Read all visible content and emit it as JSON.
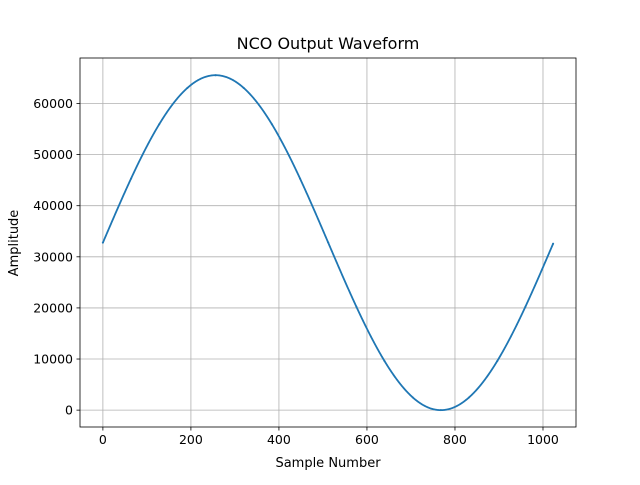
{
  "chart_data": {
    "type": "line",
    "title": "NCO Output Waveform",
    "xlabel": "Sample Number",
    "ylabel": "Amplitude",
    "xlim": [
      -52,
      1075
    ],
    "ylim": [
      -3300,
      68900
    ],
    "xticks": [
      0,
      200,
      400,
      600,
      800,
      1000
    ],
    "yticks": [
      0,
      10000,
      20000,
      30000,
      40000,
      50000,
      60000
    ],
    "grid": true,
    "series": [
      {
        "color": "#1f77b4",
        "samples": 1024,
        "offset": 32768,
        "amplitude": 32767,
        "cycles": 1,
        "x": [
          0,
          64,
          128,
          192,
          256,
          320,
          384,
          448,
          512,
          576,
          640,
          704,
          768,
          832,
          896,
          960,
          1023
        ],
        "y": [
          32768,
          45307,
          55938,
          63042,
          65535,
          63042,
          55938,
          45307,
          32768,
          20229,
          9598,
          2494,
          1,
          2494,
          9598,
          20229,
          32567
        ]
      }
    ]
  }
}
